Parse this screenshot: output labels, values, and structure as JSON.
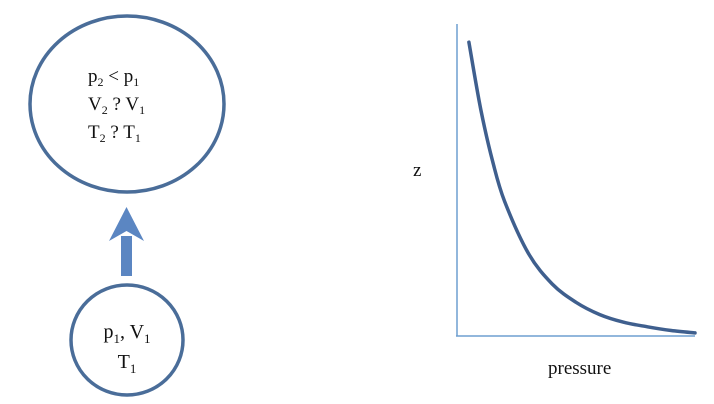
{
  "colors": {
    "circle_stroke": "#4a6d99",
    "arrow_fill": "#5b86c2",
    "axis_stroke": "#6f9fd0",
    "curve_stroke": "#3f5f8e",
    "text": "#111111"
  },
  "top_state": {
    "line1": {
      "a": "p",
      "a_sub": "2",
      "op": " < ",
      "b": "p",
      "b_sub": "1"
    },
    "line2": {
      "a": "V",
      "a_sub": "2",
      "op": " ? ",
      "b": "V",
      "b_sub": "1"
    },
    "line3": {
      "a": "T",
      "a_sub": "2",
      "op": " ? ",
      "b": "T",
      "b_sub": "1"
    }
  },
  "bottom_state": {
    "line1": {
      "a": "p",
      "a_sub": "1",
      "sep": ", ",
      "b": "V",
      "b_sub": "1"
    },
    "line2": {
      "a": "T",
      "a_sub": "1"
    }
  },
  "arrow": {
    "icon": "up-arrow-icon"
  },
  "chart_data": {
    "type": "line",
    "title": "",
    "xlabel": "pressure",
    "ylabel": "z",
    "series": [
      {
        "x": [
          0.05,
          0.1,
          0.15,
          0.2,
          0.3,
          0.4,
          0.5,
          0.6,
          0.7,
          0.8,
          0.9,
          1.0
        ],
        "values": [
          0.96,
          0.74,
          0.57,
          0.44,
          0.27,
          0.17,
          0.11,
          0.07,
          0.045,
          0.03,
          0.018,
          0.01
        ]
      }
    ],
    "xlim": [
      0,
      1
    ],
    "ylim": [
      0,
      1
    ],
    "grid": false
  }
}
